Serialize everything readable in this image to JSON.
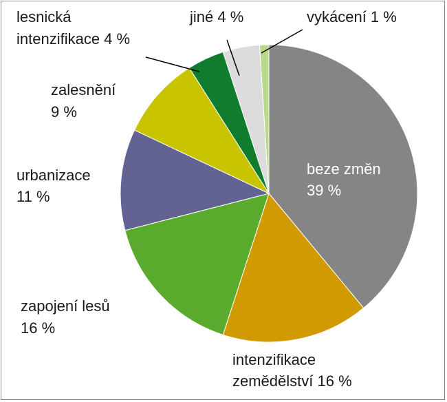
{
  "chart_data": {
    "type": "pie",
    "title": "",
    "start": "12 o'clock",
    "direction": "clockwise",
    "unit": "%",
    "slices": [
      {
        "label": "beze změn",
        "value": 39,
        "value_text": "39 %",
        "color": "#858585"
      },
      {
        "label": "intenzifikace zemědělství",
        "value": 16,
        "value_text": "16 %",
        "color": "#d09a00"
      },
      {
        "label": "zapojení lesů",
        "value": 16,
        "value_text": "16 %",
        "color": "#5aaa2e"
      },
      {
        "label": "urbanizace",
        "value": 11,
        "value_text": "11 %",
        "color": "#636393"
      },
      {
        "label": "zalesnění",
        "value": 9,
        "value_text": "9 %",
        "color": "#c8c400"
      },
      {
        "label": "lesnická intenzifikace",
        "value": 4,
        "value_text": "4 %",
        "color": "#0f7c2e"
      },
      {
        "label": "jiné",
        "value": 4,
        "value_text": "4 %",
        "color": "#dcdcdc"
      },
      {
        "label": "vykácení",
        "value": 1,
        "value_text": "1 %",
        "color": "#b9d98a"
      }
    ],
    "labels": {
      "beze_zmen": {
        "line1": "beze změn",
        "line2": "39 %"
      },
      "intenzifikace_zemedelstvi": {
        "line1": "intenzifikace",
        "line2": "zemědělství 16 %"
      },
      "zapojeni_lesu": {
        "line1": "zapojení lesů",
        "line2": "16 %"
      },
      "urbanizace": {
        "line1": "urbanizace",
        "line2": "11 %"
      },
      "zalesneni": {
        "line1": "zalesnění",
        "line2": "9 %"
      },
      "lesnicka_intenzifikace": {
        "line1": "lesnická",
        "line2": "intenzifikace 4 %"
      },
      "jine": {
        "line1": "jiné 4 %"
      },
      "vykaceni": {
        "line1": "vykácení 1 %"
      }
    }
  }
}
